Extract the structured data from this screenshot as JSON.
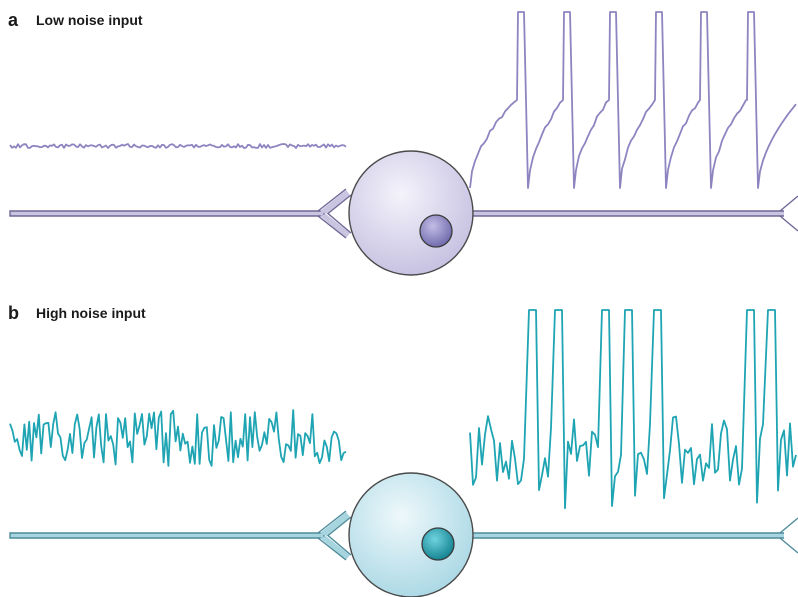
{
  "panels": [
    {
      "letter": "a",
      "title": "Low noise input",
      "colors": {
        "trace": "#8c85c0",
        "axon_fill": "#c9c5e0",
        "axon_stroke": "#6e6896",
        "soma_center": "#f4f3fb",
        "soma_edge": "#c4bfe0",
        "nucleus_center": "#c2bde6",
        "nucleus_edge": "#6d66aa"
      }
    },
    {
      "letter": "b",
      "title": "High noise input",
      "colors": {
        "trace": "#1ea4b3",
        "axon_fill": "#a7d5df",
        "axon_stroke": "#4f8b99",
        "soma_center": "#eef8fb",
        "soma_edge": "#a8d7e4",
        "nucleus_center": "#6fd3de",
        "nucleus_edge": "#0f7f8d"
      }
    }
  ]
}
